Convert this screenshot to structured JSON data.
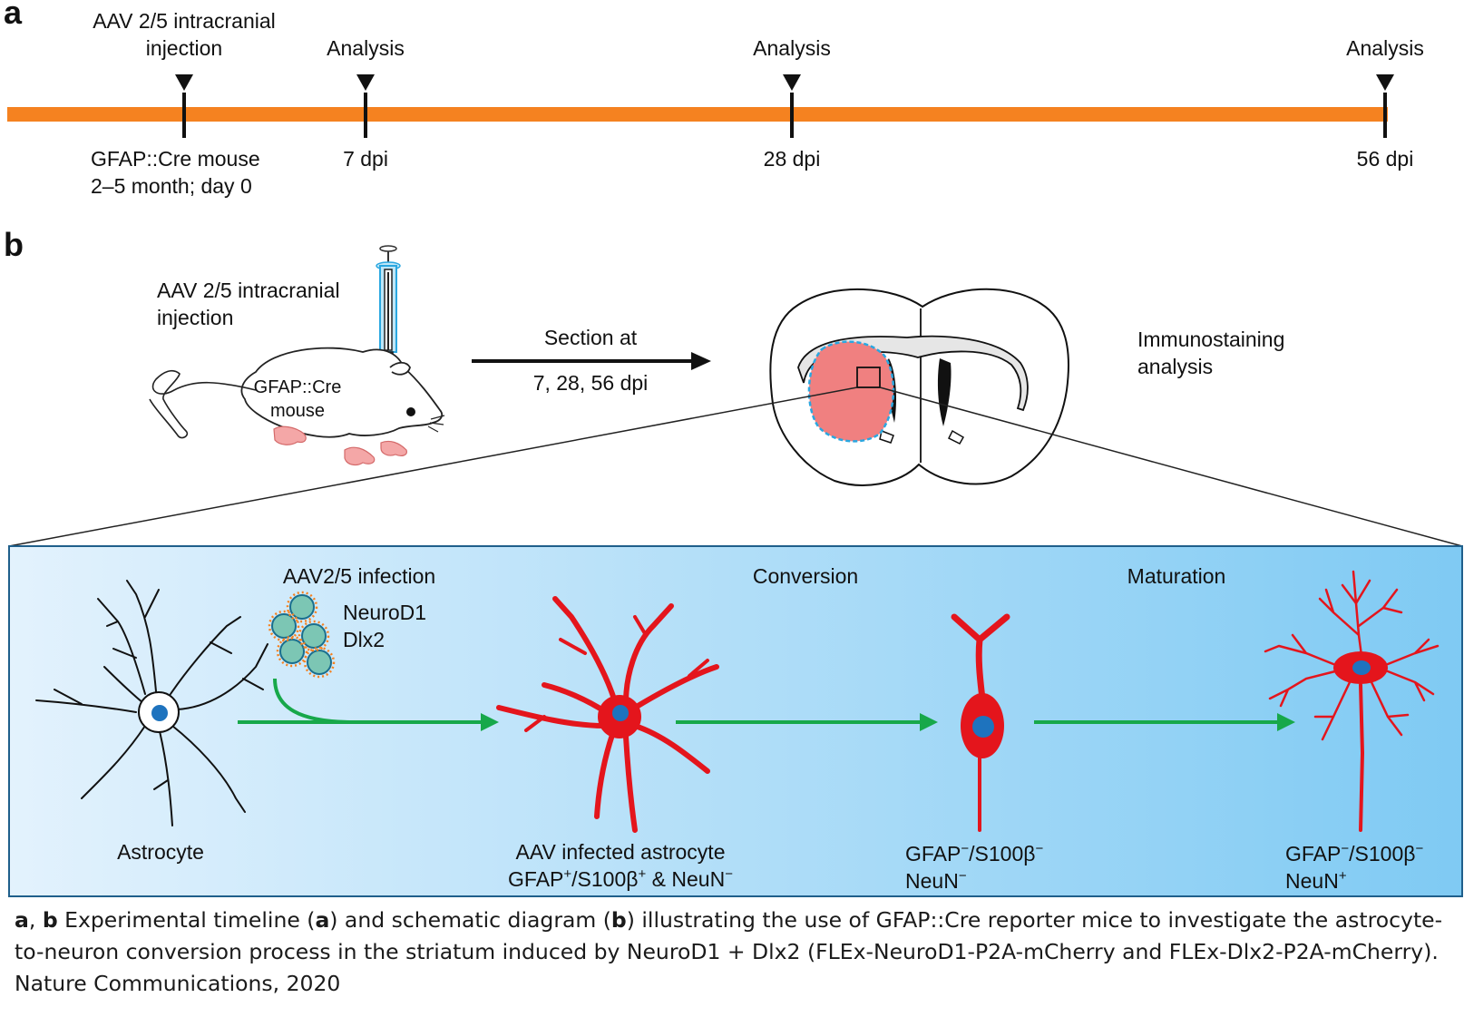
{
  "panel_a": {
    "letter": "a",
    "injection_label_line1": "AAV 2/5 intracranial",
    "injection_label_line2": "injection",
    "analysis_label": "Analysis",
    "day0_line1": "GFAP::Cre mouse",
    "day0_line2": "2–5 month; day 0",
    "tick_7": "7 dpi",
    "tick_28": "28 dpi",
    "tick_56": "56 dpi",
    "timeline_color": "#f58220"
  },
  "panel_b": {
    "letter": "b",
    "injection_line1": "AAV 2/5 intracranial",
    "injection_line2": "injection",
    "mouse_line1": "GFAP::Cre",
    "mouse_line2": "mouse",
    "section_label": "Section at",
    "section_days": "7, 28, 56 dpi",
    "immuno_line1": "Immunostaining",
    "immuno_line2": "analysis",
    "infection_label": "AAV2/5 infection",
    "virus_line1": "NeuroD1",
    "virus_line2": "Dlx2",
    "conversion_label": "Conversion",
    "maturation_label": "Maturation",
    "astrocyte_label": "Astrocyte",
    "infected_line1": "AAV infected astrocyte",
    "infected_line2_a": "GFAP",
    "infected_line2_sup1": "+",
    "infected_line2_b": "/S100β",
    "infected_line2_sup2": "+",
    "infected_line2_c": " & NeuN",
    "infected_line2_sup3": "−",
    "conv_line1_a": "GFAP",
    "conv_line1_sup1": "−",
    "conv_line1_b": "/S100β",
    "conv_line1_sup2": "−",
    "conv_line2_a": "NeuN",
    "conv_line2_sup": "−",
    "mat_line1_a": "GFAP",
    "mat_line1_sup1": "−",
    "mat_line1_b": "/S100β",
    "mat_line1_sup2": "−",
    "mat_line2_a": "NeuN",
    "mat_line2_sup": "+",
    "arrow_color": "#17a84a",
    "cell_red": "#e4151c",
    "nucleus_blue": "#1e73be",
    "striatum_pink": "#f08080"
  },
  "caption": {
    "a": "a",
    "sep": ", ",
    "b": "b",
    "t1": " Experimental timeline (",
    "a2": "a",
    "t2": ") and schematic diagram (",
    "b2": "b",
    "t3": ") illustrating the use of GFAP::Cre reporter mice to investigate the astrocyte-to-neuron conversion process in the striatum induced by NeuroD1 + Dlx2 (FLEx-NeuroD1-P2A-mCherry and FLEx-Dlx2-P2A-mCherry). Nature Communications, 2020"
  }
}
